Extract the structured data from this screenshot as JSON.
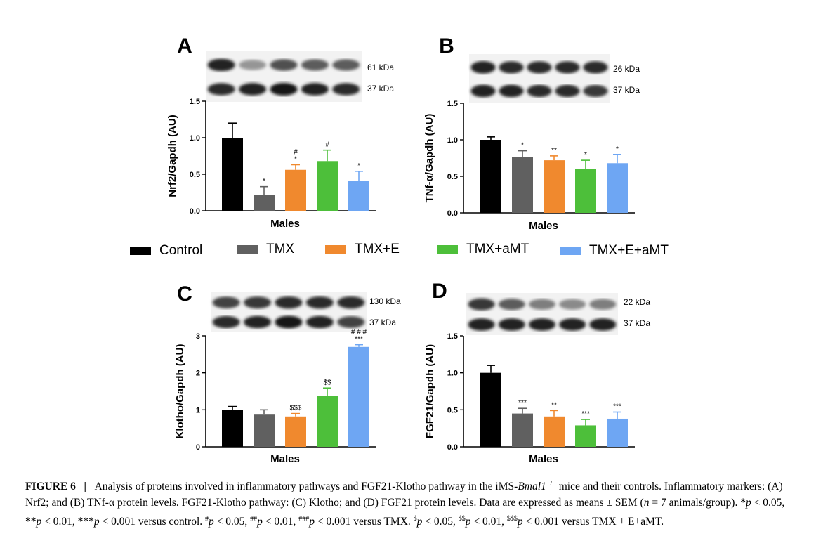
{
  "colors": {
    "Control": "#000000",
    "TMX": "#606060",
    "TMX+E": "#f0892e",
    "TMX+aMT": "#4dbf3a",
    "TMX+E+aMT": "#6ea6f3"
  },
  "legend": {
    "items": [
      "Control",
      "TMX",
      "TMX+E",
      "TMX+aMT",
      "TMX+E+aMT"
    ]
  },
  "chart_data": [
    {
      "type": "bar",
      "panel": "A",
      "blot_labels": [
        "61 kDa",
        "37 kDa"
      ],
      "categories": [
        "Control",
        "TMX",
        "TMX+E",
        "TMX+aMT",
        "TMX+E+aMT"
      ],
      "values": [
        1.0,
        0.22,
        0.56,
        0.68,
        0.41
      ],
      "errors": [
        0.2,
        0.11,
        0.07,
        0.15,
        0.13
      ],
      "annotations": [
        [
          "",
          ""
        ],
        [
          "*",
          ""
        ],
        [
          "*",
          "#"
        ],
        [
          "#",
          ""
        ],
        [
          "*",
          ""
        ]
      ],
      "xlabel": "Males",
      "ylabel": "Nrf2/Gapdh (AU)",
      "ylim": [
        0,
        1.5
      ],
      "yticks": [
        "0.0",
        "0.5",
        "1.0",
        "1.5"
      ]
    },
    {
      "type": "bar",
      "panel": "B",
      "blot_labels": [
        "26 kDa",
        "37 kDa"
      ],
      "categories": [
        "Control",
        "TMX",
        "TMX+E",
        "TMX+aMT",
        "TMX+E+aMT"
      ],
      "values": [
        1.0,
        0.76,
        0.72,
        0.6,
        0.68
      ],
      "errors": [
        0.04,
        0.09,
        0.06,
        0.12,
        0.12
      ],
      "annotations": [
        [
          "",
          ""
        ],
        [
          "*",
          ""
        ],
        [
          "**",
          ""
        ],
        [
          "*",
          ""
        ],
        [
          "*",
          ""
        ]
      ],
      "xlabel": "Males",
      "ylabel": "TNf-α/Gapdh (AU)",
      "ylim": [
        0,
        1.5
      ],
      "yticks": [
        "0.0",
        "0.5",
        "1.0",
        "1.5"
      ]
    },
    {
      "type": "bar",
      "panel": "C",
      "blot_labels": [
        "130 kDa",
        "37 kDa"
      ],
      "categories": [
        "Control",
        "TMX",
        "TMX+E",
        "TMX+aMT",
        "TMX+E+aMT"
      ],
      "values": [
        1.0,
        0.87,
        0.82,
        1.37,
        2.7
      ],
      "errors": [
        0.09,
        0.13,
        0.08,
        0.22,
        0.06
      ],
      "annotations": [
        [
          "",
          ""
        ],
        [
          "",
          ""
        ],
        [
          "$$$",
          ""
        ],
        [
          "$$",
          ""
        ],
        [
          "***",
          "# # #"
        ]
      ],
      "xlabel": "Males",
      "ylabel": "Klotho/Gapdh (AU)",
      "ylim": [
        0,
        3
      ],
      "yticks": [
        "0",
        "1",
        "2",
        "3"
      ]
    },
    {
      "type": "bar",
      "panel": "D",
      "blot_labels": [
        "22 kDa",
        "37 kDa"
      ],
      "categories": [
        "Control",
        "TMX",
        "TMX+E",
        "TMX+aMT",
        "TMX+E+aMT"
      ],
      "values": [
        1.0,
        0.45,
        0.41,
        0.29,
        0.38
      ],
      "errors": [
        0.1,
        0.07,
        0.08,
        0.08,
        0.09
      ],
      "annotations": [
        [
          "",
          ""
        ],
        [
          "***",
          ""
        ],
        [
          "**",
          ""
        ],
        [
          "***",
          ""
        ],
        [
          "***",
          ""
        ]
      ],
      "xlabel": "Males",
      "ylabel": "FGF21/Gapdh (AU)",
      "ylim": [
        0,
        1.5
      ],
      "yticks": [
        "0.0",
        "0.5",
        "1.0",
        "1.5"
      ]
    }
  ],
  "caption": {
    "label": "FIGURE 6",
    "separator": "|",
    "text_1": "Analysis of proteins involved in inflammatory pathways and FGF21-Klotho pathway in the iMS-",
    "gene": "Bmal1",
    "gene_sup": "−/−",
    "text_2": " mice and their controls. Inflammatory markers: (A) Nrf2; and (B) TNf-α protein levels. FGF21-Klotho pathway: (C) Klotho; and (D) FGF21 protein levels. Data are expressed as means ± SEM (",
    "n_var": "n",
    "text_3": " = 7 animals/group). *",
    "p": "p",
    "s1": " < 0.05, **",
    "s2": " < 0.01, ***",
    "s3": " < 0.001 versus control. ",
    "h1": "#",
    "s4": " < 0.05, ",
    "h2": "##",
    "s5": " < 0.01, ",
    "h3": "###",
    "s6": " < 0.001 versus TMX. ",
    "d1": "$",
    "s7": " < 0.05, ",
    "d2": "$$",
    "s8": " < 0.01, ",
    "d3": "$$$",
    "s9": " < 0.001 versus TMX + E+aMT."
  }
}
